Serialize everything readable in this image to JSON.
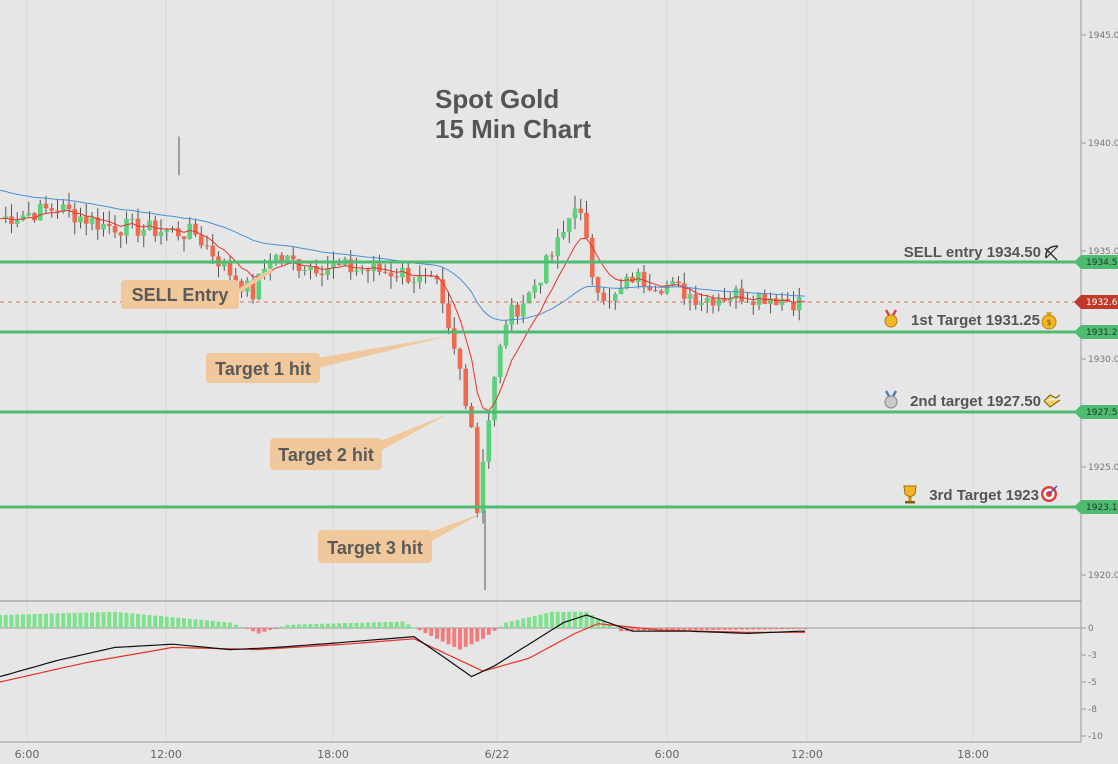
{
  "title_line1": "Spot Gold",
  "title_line2": "15 Min Chart",
  "colors": {
    "up": "#5ad17a",
    "down": "#ee6a50",
    "level": "#4dbb70",
    "ema_fast": "#e8322a",
    "ema_slow": "#4a8fd8",
    "callout_bg": "#f0c89c",
    "current_price": "#c0392b",
    "macd_line": "#111111",
    "signal_line": "#e8322a"
  },
  "icons": [
    "medal-gold-icon",
    "money-bag-icon",
    "medal-silver-icon",
    "handshake-icon",
    "trophy-icon",
    "target-icon",
    "bow-arrow-icon"
  ],
  "levels": [
    {
      "text": "SELL entry 1934.50",
      "price": 1934.5,
      "tag": "1934.53"
    },
    {
      "text": "1st Target 1931.25",
      "price": 1931.25,
      "tag": "1931.27"
    },
    {
      "text": "2nd target 1927.50",
      "price": 1927.5,
      "tag": "1927.56"
    },
    {
      "text": "3rd Target 1923",
      "price": 1923.0,
      "tag": "1923.19"
    }
  ],
  "current_price_tag": "1932.64",
  "callouts": [
    "SELL Entry",
    "Target 1 hit",
    "Target 2 hit",
    "Target 3 hit"
  ],
  "chart_data": {
    "type": "line",
    "price_axis": {
      "ticks": [
        "1945.00",
        "1940.00",
        "1935.00",
        "1930.00",
        "1925.00",
        "1920.00"
      ]
    },
    "macd_axis": {
      "ticks": [
        "0",
        "-3",
        "-5",
        "-8",
        "-10"
      ]
    },
    "time_ticks": [
      "6:00",
      "12:00",
      "18:00",
      "6/22",
      "6:00",
      "12:00",
      "18:00"
    ],
    "levels": [
      1934.5,
      1931.25,
      1927.5,
      1923.0
    ],
    "current_price": 1932.64,
    "close_path": [
      [
        0,
        1936.5
      ],
      [
        10,
        1937.0
      ],
      [
        18,
        1936.2
      ],
      [
        26,
        1936.0
      ],
      [
        34,
        1935.8
      ],
      [
        40,
        1934.0
      ],
      [
        44,
        1933.0
      ],
      [
        47,
        1934.8
      ],
      [
        52,
        1934.4
      ],
      [
        60,
        1934.2
      ],
      [
        70,
        1934.0
      ],
      [
        76,
        1933.3
      ],
      [
        78,
        1931.2
      ],
      [
        80,
        1929.5
      ],
      [
        82,
        1927.0
      ],
      [
        83,
        1923.0
      ],
      [
        84,
        1925.5
      ],
      [
        86,
        1929.0
      ],
      [
        88,
        1931.8
      ],
      [
        92,
        1933.0
      ],
      [
        96,
        1934.8
      ],
      [
        98,
        1935.8
      ],
      [
        100,
        1937.3
      ],
      [
        101,
        1936.5
      ],
      [
        103,
        1934.0
      ],
      [
        106,
        1932.5
      ],
      [
        110,
        1933.8
      ],
      [
        116,
        1933.4
      ],
      [
        122,
        1932.8
      ],
      [
        128,
        1933.0
      ],
      [
        134,
        1932.9
      ],
      [
        139,
        1932.64
      ]
    ],
    "macd_hist": [
      [
        0,
        1.2
      ],
      [
        20,
        1.5
      ],
      [
        40,
        0.5
      ],
      [
        45,
        -0.5
      ],
      [
        50,
        0.3
      ],
      [
        70,
        0.6
      ],
      [
        76,
        -1.0
      ],
      [
        80,
        -2.0
      ],
      [
        84,
        -1.0
      ],
      [
        88,
        0.5
      ],
      [
        96,
        1.5
      ],
      [
        102,
        1.5
      ],
      [
        108,
        -0.3
      ],
      [
        120,
        -0.2
      ],
      [
        139,
        -0.1
      ]
    ],
    "macd_line": [
      [
        0,
        -4.5
      ],
      [
        10,
        -3.0
      ],
      [
        20,
        -1.8
      ],
      [
        30,
        -1.5
      ],
      [
        40,
        -2.0
      ],
      [
        48,
        -1.8
      ],
      [
        58,
        -1.4
      ],
      [
        72,
        -0.8
      ],
      [
        78,
        -3.0
      ],
      [
        82,
        -4.5
      ],
      [
        86,
        -3.5
      ],
      [
        92,
        -1.5
      ],
      [
        98,
        0.5
      ],
      [
        102,
        1.2
      ],
      [
        110,
        -0.3
      ],
      [
        120,
        -0.3
      ],
      [
        130,
        -0.5
      ],
      [
        139,
        -0.3
      ]
    ],
    "signal_line": [
      [
        0,
        -5.0
      ],
      [
        15,
        -3.2
      ],
      [
        30,
        -1.8
      ],
      [
        45,
        -2.0
      ],
      [
        60,
        -1.5
      ],
      [
        72,
        -1.0
      ],
      [
        78,
        -2.5
      ],
      [
        84,
        -4.0
      ],
      [
        92,
        -2.8
      ],
      [
        100,
        -0.5
      ],
      [
        104,
        0.4
      ],
      [
        115,
        -0.2
      ],
      [
        130,
        -0.4
      ],
      [
        139,
        -0.4
      ]
    ]
  }
}
